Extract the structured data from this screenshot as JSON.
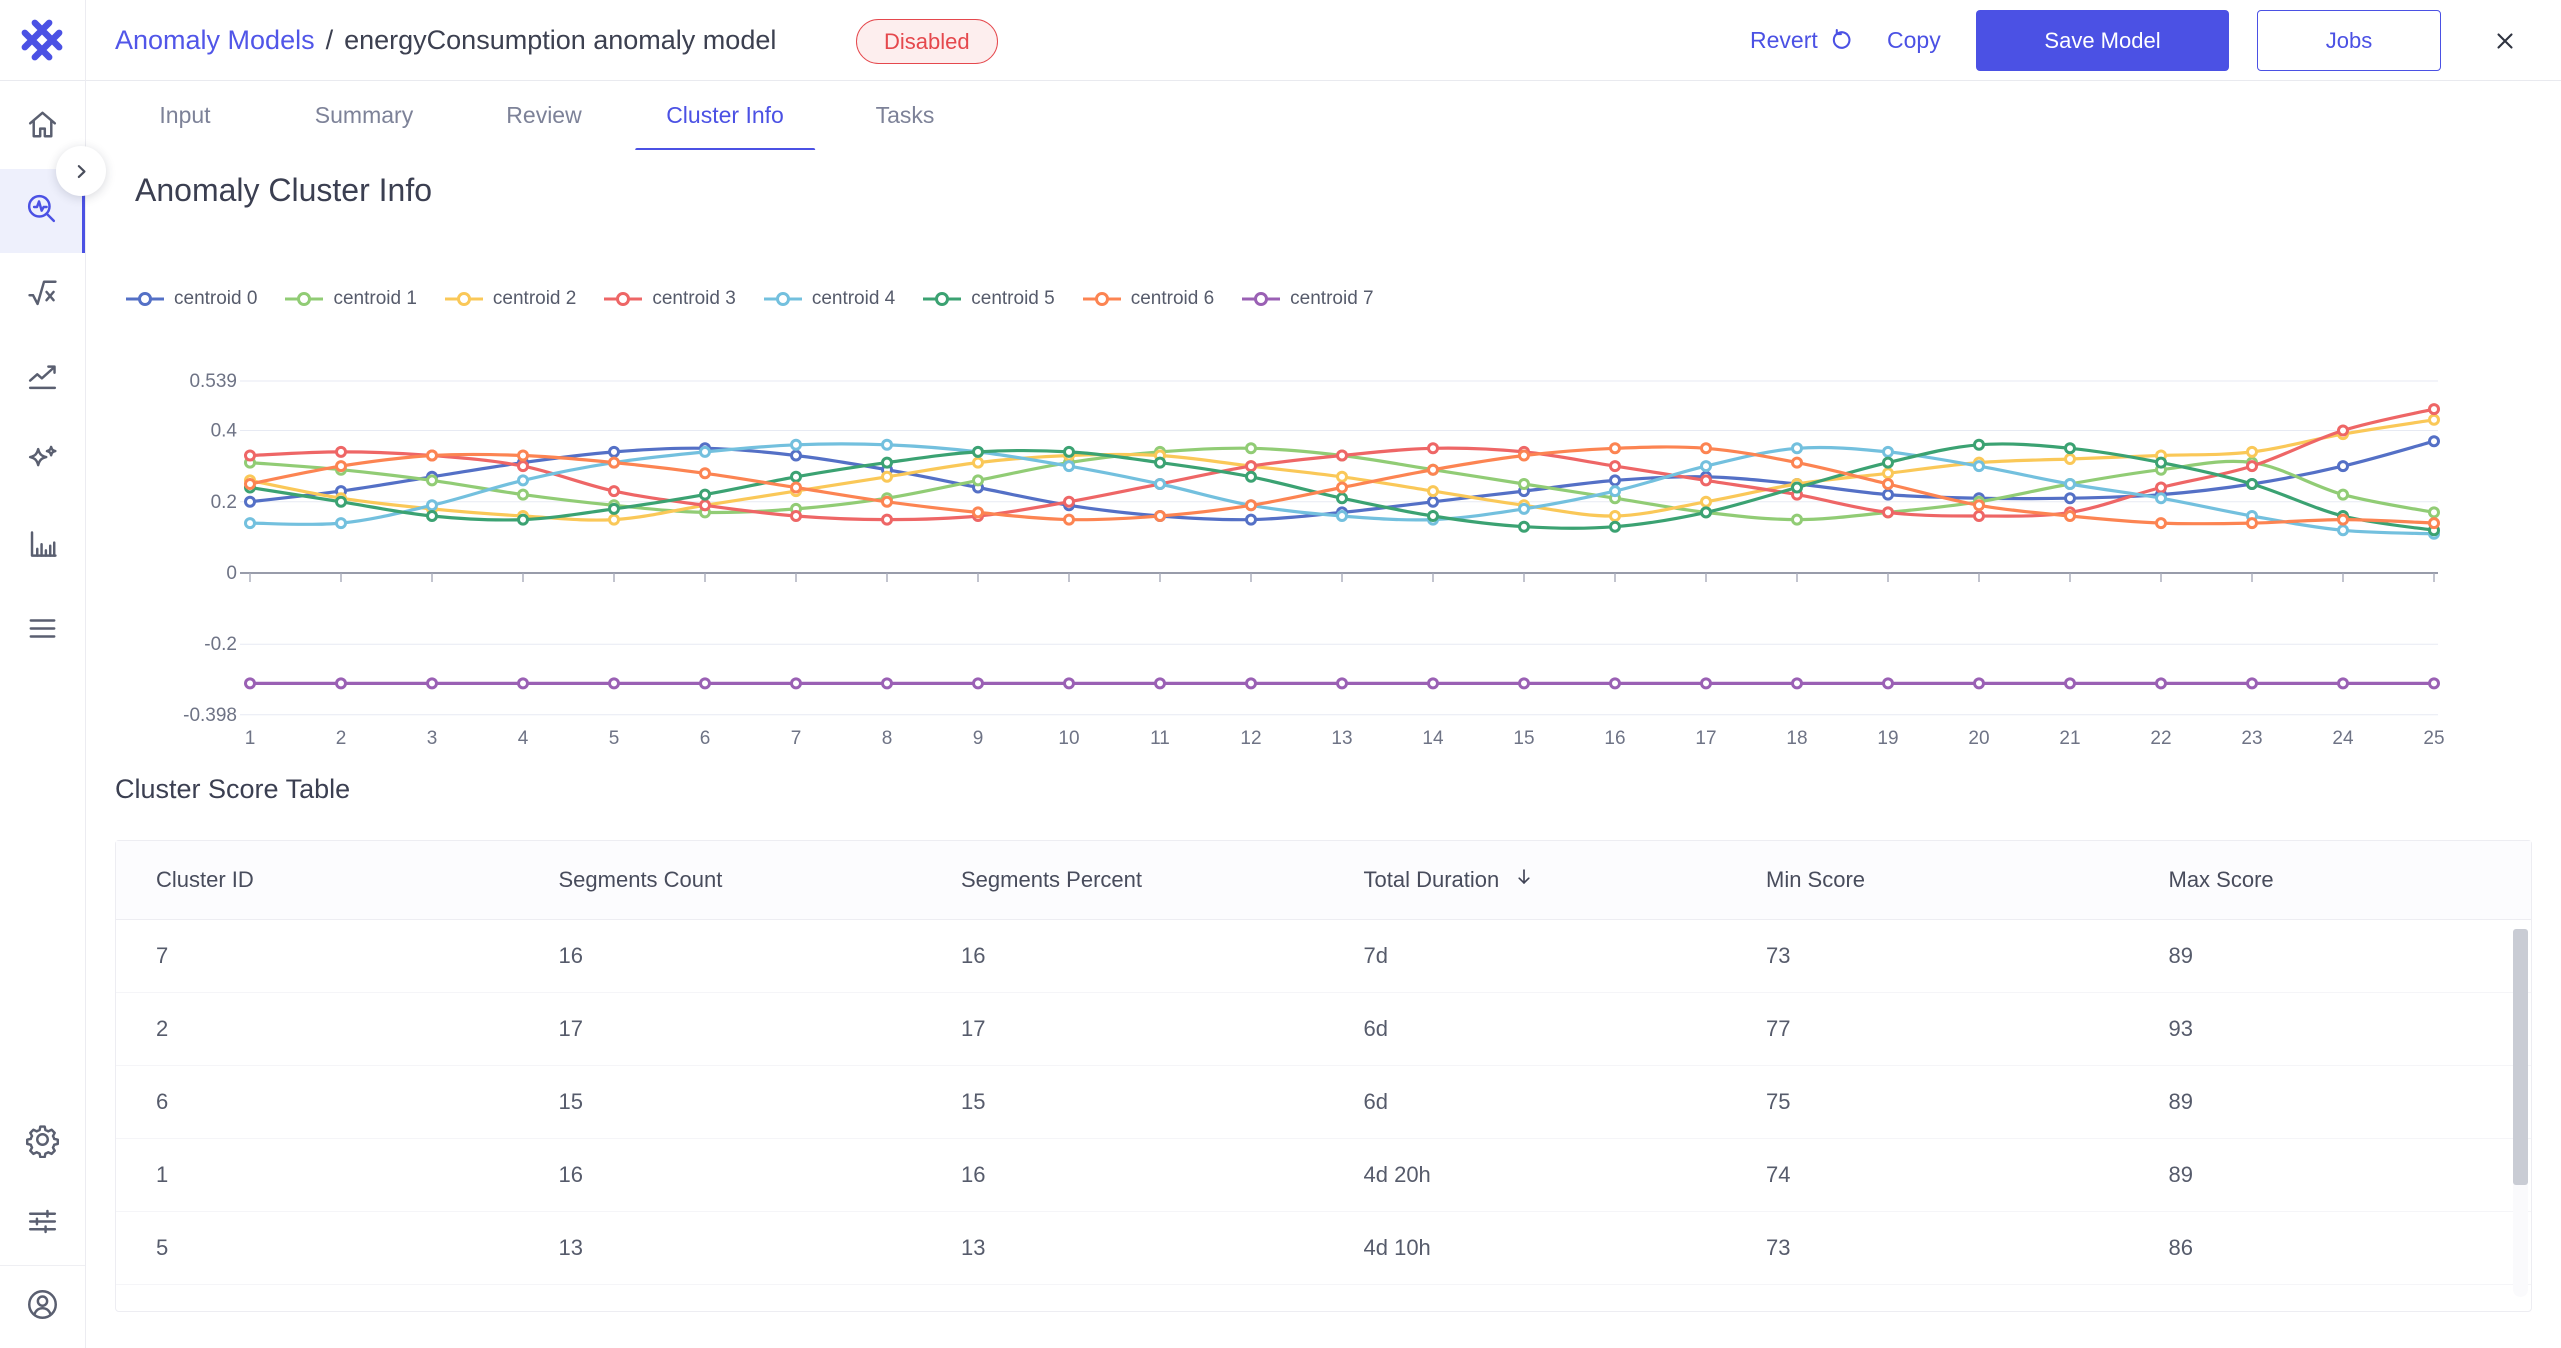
{
  "app": {
    "logo_icon": "weave-logo"
  },
  "header": {
    "breadcrumb_root": "Anomaly Models",
    "breadcrumb_sep": "/",
    "model_name": "energyConsumption anomaly model",
    "status_badge": "Disabled",
    "revert_label": "Revert",
    "copy_label": "Copy",
    "save_label": "Save Model",
    "jobs_label": "Jobs"
  },
  "tabs": [
    {
      "label": "Input",
      "active": false
    },
    {
      "label": "Summary",
      "active": false
    },
    {
      "label": "Review",
      "active": false
    },
    {
      "label": "Cluster Info",
      "active": true
    },
    {
      "label": "Tasks",
      "active": false
    }
  ],
  "sidebar": {
    "top_items": [
      {
        "name": "home",
        "active": false
      },
      {
        "name": "anomaly-search",
        "active": true
      },
      {
        "name": "formula",
        "active": false
      },
      {
        "name": "trend",
        "active": false
      },
      {
        "name": "sparkles",
        "active": false
      },
      {
        "name": "bar-chart",
        "active": false
      },
      {
        "name": "menu",
        "active": false
      }
    ],
    "bottom_items": [
      {
        "name": "settings",
        "active": false
      },
      {
        "name": "filters",
        "active": false
      },
      {
        "name": "divider",
        "active": false
      },
      {
        "name": "account",
        "active": false
      }
    ]
  },
  "page": {
    "title": "Anomaly Cluster Info",
    "table_title": "Cluster Score Table"
  },
  "chart_data": {
    "type": "line",
    "title": "",
    "xlabel": "",
    "ylabel": "",
    "legend_position": "top-left",
    "grid": "horizontal",
    "ylim": [
      -0.398,
      0.539
    ],
    "yticks": [
      0.539,
      0.4,
      0.2,
      0,
      -0.2,
      -0.398
    ],
    "x": [
      1,
      2,
      3,
      4,
      5,
      6,
      7,
      8,
      9,
      10,
      11,
      12,
      13,
      14,
      15,
      16,
      17,
      18,
      19,
      20,
      21,
      22,
      23,
      24,
      25
    ],
    "series": [
      {
        "name": "centroid 0",
        "color": "#5470c6",
        "values": [
          0.2,
          0.23,
          0.27,
          0.31,
          0.34,
          0.35,
          0.33,
          0.29,
          0.24,
          0.19,
          0.16,
          0.15,
          0.17,
          0.2,
          0.23,
          0.26,
          0.27,
          0.25,
          0.22,
          0.21,
          0.21,
          0.22,
          0.25,
          0.3,
          0.37
        ]
      },
      {
        "name": "centroid 1",
        "color": "#91cc75",
        "values": [
          0.31,
          0.29,
          0.26,
          0.22,
          0.19,
          0.17,
          0.18,
          0.21,
          0.26,
          0.31,
          0.34,
          0.35,
          0.33,
          0.29,
          0.25,
          0.21,
          0.17,
          0.15,
          0.17,
          0.2,
          0.25,
          0.29,
          0.31,
          0.22,
          0.17
        ]
      },
      {
        "name": "centroid 2",
        "color": "#fac858",
        "values": [
          0.26,
          0.21,
          0.18,
          0.16,
          0.15,
          0.19,
          0.23,
          0.27,
          0.31,
          0.33,
          0.33,
          0.3,
          0.27,
          0.23,
          0.19,
          0.16,
          0.2,
          0.25,
          0.28,
          0.31,
          0.32,
          0.33,
          0.34,
          0.39,
          0.43
        ]
      },
      {
        "name": "centroid 3",
        "color": "#ee6666",
        "values": [
          0.33,
          0.34,
          0.33,
          0.3,
          0.23,
          0.19,
          0.16,
          0.15,
          0.16,
          0.2,
          0.25,
          0.3,
          0.33,
          0.35,
          0.34,
          0.3,
          0.26,
          0.22,
          0.17,
          0.16,
          0.17,
          0.24,
          0.3,
          0.4,
          0.46
        ]
      },
      {
        "name": "centroid 4",
        "color": "#73c0de",
        "values": [
          0.14,
          0.14,
          0.19,
          0.26,
          0.31,
          0.34,
          0.36,
          0.36,
          0.34,
          0.3,
          0.25,
          0.19,
          0.16,
          0.15,
          0.18,
          0.23,
          0.3,
          0.35,
          0.34,
          0.3,
          0.25,
          0.21,
          0.16,
          0.12,
          0.11
        ]
      },
      {
        "name": "centroid 5",
        "color": "#3ba272",
        "values": [
          0.24,
          0.2,
          0.16,
          0.15,
          0.18,
          0.22,
          0.27,
          0.31,
          0.34,
          0.34,
          0.31,
          0.27,
          0.21,
          0.16,
          0.13,
          0.13,
          0.17,
          0.24,
          0.31,
          0.36,
          0.35,
          0.31,
          0.25,
          0.16,
          0.12
        ]
      },
      {
        "name": "centroid 6",
        "color": "#fc8452",
        "values": [
          0.25,
          0.3,
          0.33,
          0.33,
          0.31,
          0.28,
          0.24,
          0.2,
          0.17,
          0.15,
          0.16,
          0.19,
          0.24,
          0.29,
          0.33,
          0.35,
          0.35,
          0.31,
          0.25,
          0.19,
          0.16,
          0.14,
          0.14,
          0.15,
          0.14
        ]
      },
      {
        "name": "centroid 7",
        "color": "#9a60b4",
        "values": [
          -0.31,
          -0.31,
          -0.31,
          -0.31,
          -0.31,
          -0.31,
          -0.31,
          -0.31,
          -0.31,
          -0.31,
          -0.31,
          -0.31,
          -0.31,
          -0.31,
          -0.31,
          -0.31,
          -0.31,
          -0.31,
          -0.31,
          -0.31,
          -0.31,
          -0.31,
          -0.31,
          -0.31,
          -0.31
        ]
      }
    ]
  },
  "table": {
    "columns": [
      {
        "label": "Cluster ID",
        "sort": null
      },
      {
        "label": "Segments Count",
        "sort": null
      },
      {
        "label": "Segments Percent",
        "sort": null
      },
      {
        "label": "Total Duration",
        "sort": "desc"
      },
      {
        "label": "Min Score",
        "sort": null
      },
      {
        "label": "Max Score",
        "sort": null
      }
    ],
    "rows": [
      [
        "7",
        "16",
        "16",
        "7d",
        "73",
        "89"
      ],
      [
        "2",
        "17",
        "17",
        "6d",
        "77",
        "93"
      ],
      [
        "6",
        "15",
        "15",
        "6d",
        "75",
        "89"
      ],
      [
        "1",
        "16",
        "16",
        "4d 20h",
        "74",
        "89"
      ],
      [
        "5",
        "13",
        "13",
        "4d 10h",
        "73",
        "86"
      ]
    ]
  },
  "colors": {
    "accent": "#4b51e4",
    "link": "#5156e8",
    "danger": "#e5484d",
    "danger_bg": "#fdeeee",
    "grid_line": "#e7eaf3",
    "axis_line": "#989caa"
  }
}
